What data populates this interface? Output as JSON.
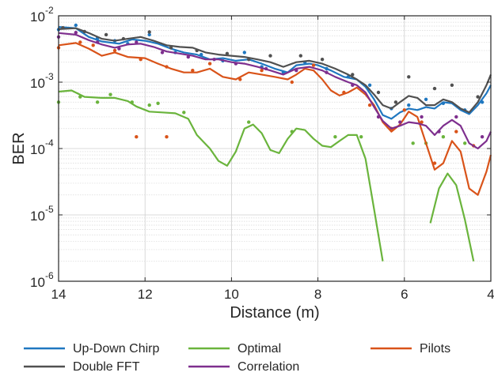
{
  "chart_data": {
    "type": "line",
    "xlabel": "Distance (m)",
    "ylabel": "BER",
    "xlim": [
      14,
      4
    ],
    "x_reversed": true,
    "ylim": [
      1e-06,
      0.01
    ],
    "yscale": "log",
    "grid": true,
    "legend_position": "bottom",
    "x_ticks": [
      "14",
      "12",
      "10",
      "8",
      "6",
      "4"
    ],
    "y_ticks": [
      {
        "base": "10",
        "exp": "-6"
      },
      {
        "base": "10",
        "exp": "-5"
      },
      {
        "base": "10",
        "exp": "-4"
      },
      {
        "base": "10",
        "exp": "-3"
      },
      {
        "base": "10",
        "exp": "-2"
      }
    ],
    "series": [
      {
        "name": "Up-Down Chirp",
        "color": "#1f77c0",
        "line": [
          [
            14,
            0.0068
          ],
          [
            13.6,
            0.0065
          ],
          [
            13.3,
            0.0048
          ],
          [
            13,
            0.0041
          ],
          [
            12.6,
            0.0038
          ],
          [
            12.3,
            0.0044
          ],
          [
            12,
            0.0042
          ],
          [
            11.7,
            0.0038
          ],
          [
            11.4,
            0.0032
          ],
          [
            11.1,
            0.0028
          ],
          [
            10.8,
            0.0026
          ],
          [
            10.5,
            0.0022
          ],
          [
            10.2,
            0.0023
          ],
          [
            9.9,
            0.0021
          ],
          [
            9.6,
            0.0022
          ],
          [
            9.3,
            0.0019
          ],
          [
            9,
            0.0016
          ],
          [
            8.7,
            0.0014
          ],
          [
            8.5,
            0.0018
          ],
          [
            8.2,
            0.0019
          ],
          [
            8,
            0.0018
          ],
          [
            7.7,
            0.0015
          ],
          [
            7.4,
            0.0012
          ],
          [
            7.1,
            0.0011
          ],
          [
            6.9,
            0.00085
          ],
          [
            6.7,
            0.00055
          ],
          [
            6.5,
            0.00032
          ],
          [
            6.3,
            0.00028
          ],
          [
            6.1,
            0.00035
          ],
          [
            5.9,
            0.0004
          ],
          [
            5.7,
            0.00038
          ],
          [
            5.5,
            0.00042
          ],
          [
            5.3,
            0.0004
          ],
          [
            5.1,
            0.0005
          ],
          [
            4.9,
            0.00048
          ],
          [
            4.7,
            0.00038
          ],
          [
            4.5,
            0.00033
          ],
          [
            4.3,
            0.00045
          ],
          [
            4.1,
            0.00068
          ],
          [
            4,
            0.0009
          ]
        ],
        "points": [
          [
            14,
            0.0062
          ],
          [
            13.6,
            0.0072
          ],
          [
            13.1,
            0.0046
          ],
          [
            12.7,
            0.0042
          ],
          [
            12.4,
            0.0038
          ],
          [
            11.9,
            0.0052
          ],
          [
            11.3,
            0.0028
          ],
          [
            10.7,
            0.0026
          ],
          [
            10.2,
            0.0021
          ],
          [
            9.7,
            0.0028
          ],
          [
            9.3,
            0.0017
          ],
          [
            8.8,
            0.0014
          ],
          [
            8.3,
            0.002
          ],
          [
            7.8,
            0.0016
          ],
          [
            7.3,
            0.0012
          ],
          [
            6.8,
            0.0009
          ],
          [
            6.3,
            0.0004
          ],
          [
            5.9,
            0.00045
          ],
          [
            5.5,
            0.00055
          ],
          [
            5.1,
            0.00048
          ],
          [
            4.6,
            0.00038
          ],
          [
            4.2,
            0.0005
          ]
        ]
      },
      {
        "name": "Optimal",
        "color": "#6ab43c",
        "line": [
          [
            14,
            0.00072
          ],
          [
            13.7,
            0.00075
          ],
          [
            13.4,
            0.0006
          ],
          [
            13,
            0.00058
          ],
          [
            12.7,
            0.00058
          ],
          [
            12.4,
            0.00052
          ],
          [
            12.2,
            0.00043
          ],
          [
            11.9,
            0.00036
          ],
          [
            11.6,
            0.00035
          ],
          [
            11.3,
            0.00034
          ],
          [
            11,
            0.00028
          ],
          [
            10.8,
            0.00016
          ],
          [
            10.5,
            0.0001
          ],
          [
            10.3,
            6.5e-05
          ],
          [
            10.1,
            5.5e-05
          ],
          [
            9.9,
            9e-05
          ],
          [
            9.7,
            0.0002
          ],
          [
            9.5,
            0.00023
          ],
          [
            9.3,
            0.00017
          ],
          [
            9.1,
            9.5e-05
          ],
          [
            8.9,
            8.5e-05
          ],
          [
            8.7,
            0.00014
          ],
          [
            8.5,
            0.0002
          ],
          [
            8.3,
            0.00019
          ],
          [
            8.1,
            0.00014
          ],
          [
            7.9,
            0.00011
          ],
          [
            7.7,
            0.000105
          ],
          [
            7.5,
            0.00013
          ],
          [
            7.3,
            0.00016
          ],
          [
            7.1,
            0.00016
          ],
          [
            6.9,
            7e-05
          ],
          [
            6.7,
            1.2e-05
          ],
          [
            6.5,
            2e-06
          ]
        ],
        "line2": [
          [
            5.4,
            7.5e-06
          ],
          [
            5.2,
            2.5e-05
          ],
          [
            5,
            4.2e-05
          ],
          [
            4.8,
            2.8e-05
          ],
          [
            4.6,
            8.5e-06
          ],
          [
            4.4,
            2e-06
          ]
        ],
        "points": [
          [
            14,
            0.0005
          ],
          [
            13.5,
            0.0006
          ],
          [
            13.1,
            0.0005
          ],
          [
            12.8,
            0.00065
          ],
          [
            12.3,
            0.0005
          ],
          [
            11.9,
            0.00045
          ],
          [
            11.7,
            0.00048
          ],
          [
            11.1,
            0.00035
          ],
          [
            9.6,
            0.00025
          ],
          [
            8.6,
            0.00018
          ],
          [
            7.6,
            0.00015
          ],
          [
            7,
            0.00015
          ],
          [
            5.8,
            0.00012
          ],
          [
            5.5,
            0.00012
          ],
          [
            5.1,
            0.00015
          ],
          [
            4.6,
            0.00012
          ]
        ]
      },
      {
        "name": "Pilots",
        "color": "#d95319",
        "line": [
          [
            14,
            0.0036
          ],
          [
            13.6,
            0.0039
          ],
          [
            13.3,
            0.0032
          ],
          [
            13,
            0.0025
          ],
          [
            12.7,
            0.0028
          ],
          [
            12.4,
            0.0024
          ],
          [
            12,
            0.0023
          ],
          [
            11.7,
            0.0019
          ],
          [
            11.4,
            0.0016
          ],
          [
            11.1,
            0.0014
          ],
          [
            10.8,
            0.0014
          ],
          [
            10.5,
            0.0016
          ],
          [
            10.2,
            0.0012
          ],
          [
            9.9,
            0.0011
          ],
          [
            9.6,
            0.0014
          ],
          [
            9.3,
            0.0013
          ],
          [
            9,
            0.0012
          ],
          [
            8.7,
            0.0011
          ],
          [
            8.5,
            0.0013
          ],
          [
            8.3,
            0.0016
          ],
          [
            8.1,
            0.0015
          ],
          [
            7.9,
            0.0011
          ],
          [
            7.7,
            0.00075
          ],
          [
            7.5,
            0.00063
          ],
          [
            7.3,
            0.0007
          ],
          [
            7.1,
            0.00083
          ],
          [
            6.9,
            0.00065
          ],
          [
            6.7,
            0.00045
          ],
          [
            6.5,
            0.00025
          ],
          [
            6.3,
            0.00018
          ],
          [
            6.1,
            0.00023
          ],
          [
            5.9,
            0.00036
          ],
          [
            5.7,
            0.0003
          ],
          [
            5.5,
            0.00012
          ],
          [
            5.3,
            4.8e-05
          ],
          [
            5.1,
            6e-05
          ],
          [
            4.9,
            0.00013
          ],
          [
            4.7,
            9e-05
          ],
          [
            4.5,
            2.5e-05
          ],
          [
            4.3,
            2e-05
          ],
          [
            4.1,
            4.5e-05
          ],
          [
            4,
            8e-05
          ]
        ],
        "points": [
          [
            14,
            0.0033
          ],
          [
            13.5,
            0.004
          ],
          [
            13.2,
            0.0036
          ],
          [
            12.7,
            0.003
          ],
          [
            12.1,
            0.0022
          ],
          [
            11.5,
            0.0017
          ],
          [
            10.9,
            0.0015
          ],
          [
            10.5,
            0.0019
          ],
          [
            9.8,
            0.0011
          ],
          [
            9.3,
            0.0015
          ],
          [
            8.6,
            0.001
          ],
          [
            8.1,
            0.0018
          ],
          [
            7.4,
            0.0007
          ],
          [
            6.8,
            0.00045
          ],
          [
            6.3,
            0.0002
          ],
          [
            6,
            0.00038
          ],
          [
            5.6,
            0.00025
          ],
          [
            5.3,
            6e-05
          ],
          [
            4.8,
            0.00018
          ],
          [
            4.4,
            0.00011
          ],
          [
            12.2,
            0.00015
          ],
          [
            11.5,
            0.00015
          ]
        ]
      },
      {
        "name": "Double FFT",
        "color": "#505050",
        "line": [
          [
            14,
            0.0063
          ],
          [
            13.6,
            0.0065
          ],
          [
            13.3,
            0.0055
          ],
          [
            13,
            0.0045
          ],
          [
            12.7,
            0.0042
          ],
          [
            12.4,
            0.0045
          ],
          [
            12.1,
            0.0048
          ],
          [
            11.8,
            0.0042
          ],
          [
            11.5,
            0.0036
          ],
          [
            11.2,
            0.0034
          ],
          [
            10.9,
            0.0033
          ],
          [
            10.6,
            0.0028
          ],
          [
            10.3,
            0.0026
          ],
          [
            10,
            0.0025
          ],
          [
            9.7,
            0.0024
          ],
          [
            9.4,
            0.0022
          ],
          [
            9.1,
            0.002
          ],
          [
            8.8,
            0.0017
          ],
          [
            8.5,
            0.002
          ],
          [
            8.2,
            0.0021
          ],
          [
            7.9,
            0.0019
          ],
          [
            7.6,
            0.0016
          ],
          [
            7.3,
            0.0013
          ],
          [
            7.1,
            0.0011
          ],
          [
            6.9,
            0.0009
          ],
          [
            6.7,
            0.00065
          ],
          [
            6.5,
            0.00045
          ],
          [
            6.3,
            0.0004
          ],
          [
            6.1,
            0.0005
          ],
          [
            5.9,
            0.00062
          ],
          [
            5.7,
            0.00058
          ],
          [
            5.5,
            0.00045
          ],
          [
            5.3,
            0.00045
          ],
          [
            5.1,
            0.00055
          ],
          [
            4.9,
            0.0005
          ],
          [
            4.7,
            0.0004
          ],
          [
            4.5,
            0.00035
          ],
          [
            4.3,
            0.0005
          ],
          [
            4.1,
            0.0009
          ],
          [
            4,
            0.0013
          ]
        ],
        "points": [
          [
            13.9,
            0.0066
          ],
          [
            13.4,
            0.0058
          ],
          [
            12.9,
            0.0052
          ],
          [
            12.5,
            0.0045
          ],
          [
            11.9,
            0.0057
          ],
          [
            11.4,
            0.0033
          ],
          [
            10.8,
            0.003
          ],
          [
            10.1,
            0.0027
          ],
          [
            9.6,
            0.0022
          ],
          [
            9.1,
            0.0025
          ],
          [
            8.4,
            0.0025
          ],
          [
            7.9,
            0.0022
          ],
          [
            7.2,
            0.0013
          ],
          [
            6.6,
            0.0007
          ],
          [
            6.2,
            0.0005
          ],
          [
            5.9,
            0.0012
          ],
          [
            5.3,
            0.0008
          ],
          [
            4.9,
            0.0009
          ],
          [
            4.3,
            0.0006
          ]
        ]
      },
      {
        "name": "Correlation",
        "color": "#7e2f8e",
        "line": [
          [
            14,
            0.0055
          ],
          [
            13.6,
            0.0052
          ],
          [
            13.3,
            0.0043
          ],
          [
            13,
            0.0037
          ],
          [
            12.7,
            0.0033
          ],
          [
            12.4,
            0.0037
          ],
          [
            12.1,
            0.0038
          ],
          [
            11.8,
            0.0034
          ],
          [
            11.5,
            0.0029
          ],
          [
            11.2,
            0.0027
          ],
          [
            10.9,
            0.0025
          ],
          [
            10.6,
            0.0022
          ],
          [
            10.3,
            0.0022
          ],
          [
            10,
            0.002
          ],
          [
            9.7,
            0.0019
          ],
          [
            9.4,
            0.0017
          ],
          [
            9.1,
            0.0015
          ],
          [
            8.8,
            0.0013
          ],
          [
            8.5,
            0.0016
          ],
          [
            8.2,
            0.0017
          ],
          [
            7.9,
            0.0015
          ],
          [
            7.6,
            0.0012
          ],
          [
            7.3,
            0.001
          ],
          [
            7.1,
            0.0009
          ],
          [
            6.9,
            0.0007
          ],
          [
            6.7,
            0.00042
          ],
          [
            6.5,
            0.00026
          ],
          [
            6.3,
            0.0002
          ],
          [
            6.1,
            0.00022
          ],
          [
            5.9,
            0.00025
          ],
          [
            5.7,
            0.00024
          ],
          [
            5.5,
            0.00022
          ],
          [
            5.3,
            0.00016
          ],
          [
            5.1,
            0.00022
          ],
          [
            4.9,
            0.00027
          ],
          [
            4.7,
            0.00022
          ],
          [
            4.5,
            0.00012
          ],
          [
            4.3,
            0.0001
          ],
          [
            4.1,
            0.00013
          ],
          [
            4,
            0.00018
          ]
        ],
        "points": [
          [
            14,
            0.0048
          ],
          [
            13.6,
            0.0056
          ],
          [
            13.1,
            0.004
          ],
          [
            12.6,
            0.0032
          ],
          [
            12.2,
            0.004
          ],
          [
            11.6,
            0.0028
          ],
          [
            11,
            0.0024
          ],
          [
            10.4,
            0.0022
          ],
          [
            9.9,
            0.0019
          ],
          [
            9.2,
            0.0016
          ],
          [
            8.5,
            0.0015
          ],
          [
            7.8,
            0.0014
          ],
          [
            7.2,
            0.0009
          ],
          [
            6.6,
            0.0003
          ],
          [
            6.1,
            0.00025
          ],
          [
            5.6,
            0.0003
          ],
          [
            5.2,
            0.00018
          ],
          [
            4.8,
            0.0003
          ],
          [
            4.2,
            0.00015
          ]
        ]
      }
    ]
  }
}
